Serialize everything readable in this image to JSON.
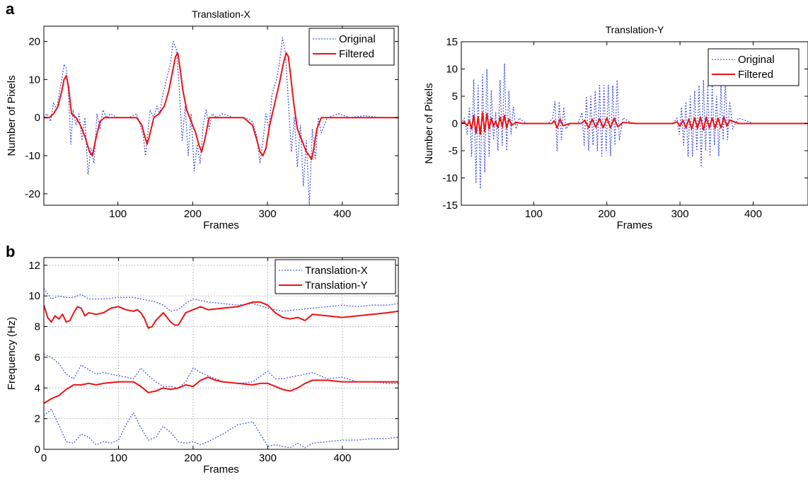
{
  "panel_labels": {
    "a": "a",
    "b": "b"
  },
  "colors": {
    "original": "#3f4ee8",
    "filtered": "#ee1111",
    "grid": "#9a9a9a",
    "axis": "#000000"
  },
  "chart_data": [
    {
      "type": "line",
      "title": "Translation-X",
      "xlabel": "Frames",
      "ylabel": "Number of Pixels",
      "xlim": [
        1,
        475
      ],
      "ylim": [
        -23,
        24
      ],
      "xticks": [
        100,
        200,
        300,
        400
      ],
      "yticks": [
        -20,
        -10,
        0,
        10,
        20
      ],
      "grid": false,
      "legend": "top-right",
      "series": [
        {
          "name": "Original",
          "style": "dotted",
          "x": [
            1,
            5,
            10,
            14,
            18,
            22,
            25,
            28,
            31,
            34,
            37,
            40,
            44,
            48,
            52,
            56,
            60,
            64,
            68,
            72,
            76,
            80,
            85,
            90,
            100,
            115,
            125,
            130,
            134,
            137,
            140,
            143,
            148,
            152,
            156,
            160,
            165,
            170,
            174,
            178,
            182,
            186,
            190,
            194,
            198,
            202,
            206,
            210,
            214,
            218,
            222,
            226,
            232,
            240,
            255,
            270,
            280,
            286,
            290,
            294,
            298,
            302,
            306,
            312,
            316,
            320,
            324,
            328,
            332,
            336,
            340,
            344,
            348,
            352,
            356,
            360,
            364,
            368,
            372,
            380,
            395,
            410,
            430,
            450,
            475
          ],
          "values": [
            0,
            1,
            -1,
            4,
            2,
            7,
            10,
            14,
            13,
            6,
            -7,
            2,
            -2,
            1,
            -6,
            0,
            -15,
            -8,
            -12,
            1,
            -3,
            2,
            0,
            1,
            0,
            0,
            1,
            -2,
            -5,
            -10,
            -4,
            2,
            0,
            3,
            1,
            6,
            10,
            14,
            20,
            18,
            8,
            -6,
            3,
            -10,
            1,
            -14,
            -7,
            -12,
            -2,
            2,
            -3,
            1,
            0,
            1,
            0,
            0,
            -1,
            -5,
            -12,
            -6,
            1,
            -3,
            6,
            10,
            14,
            21,
            17,
            4,
            -9,
            0,
            -13,
            -2,
            -18,
            -6,
            -23,
            -3,
            -11,
            0,
            -4,
            0,
            1,
            0,
            0.5,
            0,
            0
          ]
        },
        {
          "name": "Filtered",
          "style": "solid",
          "x": [
            1,
            8,
            14,
            20,
            25,
            28,
            31,
            34,
            38,
            44,
            50,
            56,
            62,
            66,
            70,
            76,
            82,
            90,
            110,
            125,
            132,
            136,
            139,
            142,
            148,
            155,
            162,
            168,
            173,
            177,
            180,
            183,
            187,
            192,
            198,
            204,
            208,
            212,
            216,
            222,
            232,
            250,
            268,
            280,
            286,
            290,
            294,
            298,
            303,
            310,
            316,
            321,
            325,
            328,
            331,
            335,
            340,
            346,
            352,
            356,
            359,
            362,
            366,
            372,
            385,
            410,
            440,
            475
          ],
          "values": [
            0,
            0,
            1,
            3,
            7,
            10,
            11,
            8,
            1,
            0,
            -2,
            -5,
            -9,
            -10,
            -6,
            -1,
            0,
            0,
            0,
            0,
            -2,
            -5,
            -7,
            -5,
            0,
            1,
            3,
            7,
            12,
            16,
            17,
            13,
            7,
            2,
            -1,
            -4,
            -7,
            -9,
            -6,
            0,
            0,
            0,
            0,
            -2,
            -6,
            -9,
            -10,
            -8,
            -2,
            4,
            9,
            14,
            17,
            16,
            11,
            4,
            -3,
            -6,
            -9,
            -10,
            -11,
            -8,
            -3,
            0,
            0,
            0,
            0,
            0
          ]
        }
      ]
    },
    {
      "type": "line",
      "title": "Translation-Y",
      "xlabel": "Frames",
      "ylabel": "Number of Pixels",
      "xlim": [
        1,
        475
      ],
      "ylim": [
        -15,
        15
      ],
      "xticks": [
        100,
        200,
        300,
        400
      ],
      "yticks": [
        -15,
        -10,
        -5,
        0,
        5,
        10,
        15
      ],
      "grid": false,
      "legend": "top-right",
      "series": [
        {
          "name": "Original",
          "style": "dotted",
          "x": [
            1,
            5,
            9,
            12,
            15,
            18,
            21,
            24,
            27,
            30,
            33,
            36,
            39,
            42,
            45,
            48,
            51,
            54,
            57,
            60,
            63,
            66,
            69,
            72,
            76,
            80,
            90,
            100,
            120,
            126,
            129,
            132,
            135,
            138,
            141,
            144,
            150,
            160,
            166,
            169,
            172,
            175,
            178,
            181,
            184,
            187,
            190,
            193,
            196,
            199,
            202,
            205,
            208,
            211,
            214,
            217,
            222,
            235,
            260,
            290,
            296,
            299,
            302,
            305,
            308,
            311,
            314,
            317,
            320,
            323,
            326,
            329,
            332,
            335,
            338,
            341,
            344,
            347,
            350,
            353,
            356,
            359,
            362,
            365,
            368,
            372,
            380,
            400,
            430,
            475
          ],
          "values": [
            0,
            1,
            -2,
            3,
            -6,
            8,
            -11,
            7,
            -12,
            9,
            -9,
            10,
            -6,
            6,
            -3,
            2,
            -5,
            8,
            -4,
            11,
            -5,
            6,
            -2,
            3,
            -1,
            1,
            0,
            0,
            0,
            1,
            4,
            -5,
            4,
            -3,
            3,
            -1,
            0,
            0,
            2,
            -4,
            5,
            -5,
            5,
            -4,
            6,
            -5,
            7,
            -6,
            7,
            -5,
            7,
            -6,
            7,
            -4,
            8,
            -3,
            1,
            0,
            0,
            0,
            1,
            -2,
            3,
            -4,
            4,
            -6,
            5,
            -6,
            6,
            -5,
            7,
            -8,
            8,
            -5,
            7,
            -6,
            7,
            -4,
            5,
            -6,
            7,
            -3,
            8,
            -3,
            4,
            -1,
            1,
            0,
            0,
            0
          ]
        },
        {
          "name": "Filtered",
          "style": "solid",
          "x": [
            1,
            5,
            9,
            12,
            15,
            18,
            21,
            24,
            27,
            30,
            33,
            36,
            39,
            42,
            45,
            48,
            51,
            54,
            57,
            60,
            63,
            66,
            70,
            76,
            85,
            100,
            125,
            128,
            132,
            136,
            140,
            150,
            165,
            170,
            175,
            180,
            185,
            190,
            195,
            200,
            205,
            210,
            215,
            222,
            240,
            290,
            296,
            300,
            304,
            308,
            312,
            316,
            320,
            324,
            328,
            332,
            336,
            340,
            344,
            348,
            352,
            356,
            360,
            364,
            368,
            380,
            420,
            475
          ],
          "values": [
            0,
            0.3,
            -0.4,
            0.5,
            -1,
            1.5,
            -1.8,
            1.2,
            -2,
            2,
            -1.5,
            1.8,
            -1,
            1,
            -0.5,
            0.4,
            -0.8,
            1.2,
            -0.6,
            1.5,
            -0.8,
            0.8,
            -0.3,
            0.2,
            0,
            0,
            0,
            0.5,
            -0.8,
            0.8,
            -0.4,
            0,
            0,
            0.6,
            -0.8,
            0.8,
            -0.7,
            0.9,
            -0.8,
            1,
            -0.8,
            1,
            -0.6,
            0.2,
            0,
            0,
            0.3,
            -0.5,
            0.6,
            -0.8,
            0.8,
            -1,
            1,
            -0.9,
            1.2,
            -1.2,
            1.2,
            -0.8,
            1,
            -0.9,
            1,
            -0.8,
            1.2,
            -0.5,
            0.6,
            0,
            0,
            0
          ]
        }
      ]
    },
    {
      "type": "line",
      "title": "",
      "xlabel": "Frames",
      "ylabel": "Frequency (Hz)",
      "xlim": [
        0,
        475
      ],
      "ylim": [
        0,
        12.5
      ],
      "xticks": [
        0,
        100,
        200,
        300,
        400
      ],
      "yticks": [
        0,
        2,
        4,
        6,
        8,
        10,
        12
      ],
      "grid": true,
      "legend": "top-right",
      "series": [
        {
          "name": "Translation-X",
          "style": "dotted",
          "x": [
            0,
            10,
            20,
            30,
            40,
            50,
            60,
            80,
            100,
            120,
            130,
            140,
            150,
            160,
            170,
            180,
            190,
            200,
            210,
            220,
            240,
            260,
            280,
            300,
            320,
            340,
            360,
            380,
            400,
            420,
            440,
            460,
            475
          ],
          "values": [
            10.5,
            9.8,
            10.0,
            9.9,
            9.9,
            10.1,
            9.8,
            9.8,
            9.9,
            9.9,
            9.8,
            9.7,
            9.6,
            9.4,
            9.0,
            9.1,
            9.5,
            9.8,
            9.7,
            9.6,
            9.5,
            9.4,
            9.5,
            9.2,
            9.0,
            9.1,
            9.2,
            9.3,
            9.4,
            9.3,
            9.4,
            9.4,
            9.5
          ]
        },
        {
          "name": "Translation-X",
          "style": "dotted",
          "x": [
            0,
            10,
            20,
            30,
            40,
            50,
            60,
            70,
            80,
            90,
            100,
            120,
            130,
            140,
            150,
            160,
            170,
            180,
            190,
            200,
            210,
            220,
            240,
            260,
            280,
            300,
            310,
            320,
            340,
            360,
            380,
            400,
            420,
            440,
            460,
            475
          ],
          "values": [
            6.2,
            6.0,
            5.6,
            4.9,
            4.6,
            5.5,
            5.2,
            4.9,
            5.0,
            4.9,
            4.8,
            4.6,
            5.3,
            4.8,
            4.4,
            4.1,
            4.1,
            4.0,
            4.4,
            5.3,
            5.0,
            4.8,
            4.4,
            4.3,
            4.4,
            5.1,
            4.6,
            4.6,
            4.8,
            5.0,
            4.6,
            4.7,
            4.4,
            4.4,
            4.3,
            4.3
          ]
        },
        {
          "name": "Translation-X",
          "style": "dotted",
          "x": [
            0,
            10,
            20,
            30,
            40,
            50,
            60,
            70,
            80,
            90,
            100,
            110,
            120,
            130,
            140,
            150,
            160,
            170,
            180,
            190,
            200,
            210,
            220,
            240,
            260,
            280,
            290,
            300,
            310,
            320,
            330,
            340,
            350,
            360,
            380,
            400,
            420,
            440,
            460,
            475
          ],
          "values": [
            2.2,
            2.6,
            1.6,
            0.5,
            0.4,
            1.0,
            0.8,
            0.3,
            0.5,
            0.4,
            0.6,
            1.6,
            2.4,
            1.4,
            0.6,
            0.8,
            1.5,
            1.1,
            0.5,
            0.4,
            0.5,
            0.3,
            0.5,
            1.0,
            1.6,
            1.8,
            1.0,
            0.2,
            0.3,
            0.2,
            0.1,
            0.4,
            0.1,
            0.4,
            0.5,
            0.6,
            0.6,
            0.7,
            0.7,
            0.8
          ]
        },
        {
          "name": "Translation-Y",
          "style": "solid",
          "x": [
            0,
            5,
            10,
            15,
            20,
            25,
            30,
            35,
            40,
            45,
            50,
            55,
            60,
            70,
            80,
            90,
            100,
            110,
            120,
            125,
            130,
            135,
            140,
            145,
            150,
            160,
            170,
            175,
            180,
            190,
            200,
            210,
            220,
            240,
            260,
            280,
            290,
            300,
            310,
            320,
            330,
            340,
            350,
            360,
            380,
            400,
            420,
            440,
            460,
            475
          ],
          "values": [
            9.4,
            8.6,
            8.3,
            8.7,
            8.5,
            8.8,
            8.3,
            8.4,
            8.9,
            9.3,
            9.2,
            8.7,
            8.9,
            8.8,
            8.9,
            9.2,
            9.3,
            9.1,
            9.0,
            9.1,
            8.9,
            8.5,
            7.9,
            8.0,
            8.4,
            8.9,
            8.3,
            8.1,
            8.1,
            8.9,
            9.1,
            9.3,
            9.1,
            9.2,
            9.3,
            9.6,
            9.6,
            9.4,
            8.9,
            8.6,
            8.5,
            8.6,
            8.4,
            8.8,
            8.7,
            8.6,
            8.7,
            8.8,
            8.9,
            9.0
          ]
        },
        {
          "name": "Translation-Y",
          "style": "solid",
          "x": [
            0,
            10,
            20,
            30,
            40,
            50,
            60,
            70,
            80,
            100,
            120,
            130,
            140,
            150,
            160,
            170,
            180,
            190,
            200,
            210,
            220,
            230,
            240,
            260,
            280,
            290,
            300,
            310,
            320,
            330,
            340,
            350,
            360,
            380,
            400,
            420,
            440,
            460,
            475
          ],
          "values": [
            3.0,
            3.3,
            3.5,
            3.9,
            4.2,
            4.2,
            4.3,
            4.2,
            4.3,
            4.4,
            4.4,
            4.1,
            3.7,
            3.8,
            4.0,
            3.9,
            4.0,
            4.2,
            4.1,
            4.5,
            4.7,
            4.5,
            4.4,
            4.3,
            4.2,
            4.3,
            4.3,
            4.1,
            3.9,
            3.8,
            4.0,
            4.3,
            4.5,
            4.5,
            4.4,
            4.4,
            4.4,
            4.4,
            4.4
          ]
        }
      ]
    }
  ]
}
